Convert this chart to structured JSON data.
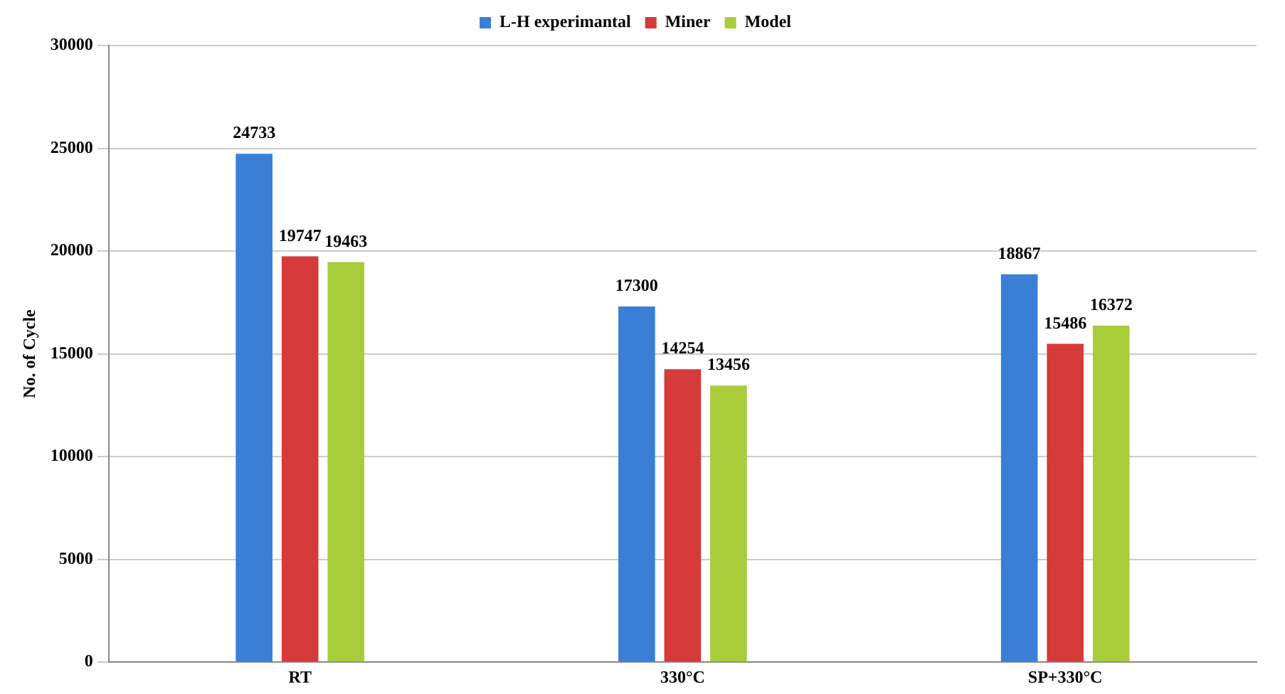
{
  "chart_data": {
    "type": "bar",
    "ylabel": "No. of Cycle",
    "categories": [
      "RT",
      "330°C",
      "SP+330°C"
    ],
    "series": [
      {
        "name": "L-H experimantal",
        "color": "#3a7fd5",
        "values": [
          24733,
          17300,
          18867
        ]
      },
      {
        "name": "Miner",
        "color": "#d63a3a",
        "values": [
          19747,
          14254,
          15486
        ]
      },
      {
        "name": "Model",
        "color": "#a9cc3c",
        "values": [
          19463,
          13456,
          16372
        ]
      }
    ],
    "ylim": [
      0,
      30000
    ],
    "yticks": [
      0,
      5000,
      10000,
      15000,
      20000,
      25000,
      30000
    ],
    "grid": "y",
    "legend": "top",
    "data_labels": true
  }
}
